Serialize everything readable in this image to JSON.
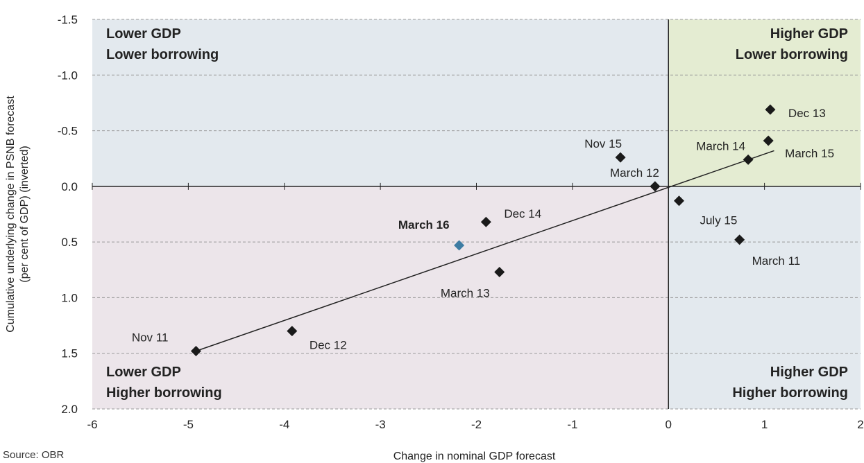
{
  "source_note": "Source: OBR",
  "colors": {
    "upper_left": "#e3e9ee",
    "upper_right": "#e4ecd2",
    "lower_left": "#ece5ea",
    "lower_right": "#e3e9ee",
    "point": "#1a1a1a",
    "highlight_point": "#3d7ca3",
    "gridline": "#999999",
    "axis": "#222222",
    "trendline": "#222222"
  },
  "chart_data": {
    "type": "scatter",
    "title": "",
    "xlabel": "Change in nominal GDP forecast",
    "ylabel_lines": [
      "Cumulative underlying change in PSNB forecast",
      "(per cent of GDP) (inverted)"
    ],
    "xlim": [
      -6,
      2
    ],
    "ylim": [
      -1.5,
      2.0
    ],
    "y_inverted": true,
    "grid": "horizontal dashed",
    "x_ticks": [
      "-6",
      "-5",
      "-4",
      "-3",
      "-2",
      "-1",
      "0",
      "1",
      "2"
    ],
    "y_ticks": [
      "-1.5",
      "-1.0",
      "-0.5",
      "0.0",
      "0.5",
      "1.0",
      "1.5",
      "2.0"
    ],
    "quadrant_labels": {
      "upper_left": [
        "Lower GDP",
        "Lower borrowing"
      ],
      "upper_right": [
        "Higher GDP",
        "Lower borrowing"
      ],
      "lower_left": [
        "Lower GDP",
        "Higher borrowing"
      ],
      "lower_right": [
        "Higher GDP",
        "Higher borrowing"
      ]
    },
    "points": [
      {
        "label": "Nov 11",
        "x": -4.92,
        "y": 1.48
      },
      {
        "label": "Dec 12",
        "x": -3.92,
        "y": 1.3
      },
      {
        "label": "March 16",
        "x": -2.18,
        "y": 0.53,
        "highlight": true
      },
      {
        "label": "Dec 14",
        "x": -1.9,
        "y": 0.32
      },
      {
        "label": "March 13",
        "x": -1.76,
        "y": 0.77
      },
      {
        "label": "Nov 15",
        "x": -0.5,
        "y": -0.26
      },
      {
        "label": "March 12",
        "x": -0.14,
        "y": 0.0
      },
      {
        "label": "July 15",
        "x": 0.11,
        "y": 0.13
      },
      {
        "label": "March 11",
        "x": 0.74,
        "y": 0.48
      },
      {
        "label": "March 14",
        "x": 0.83,
        "y": -0.24
      },
      {
        "label": "March 15",
        "x": 1.04,
        "y": -0.41
      },
      {
        "label": "Dec 13",
        "x": 1.06,
        "y": -0.69
      }
    ],
    "trendline": {
      "x": [
        -4.92,
        1.1
      ],
      "y": [
        1.48,
        -0.32
      ]
    }
  }
}
